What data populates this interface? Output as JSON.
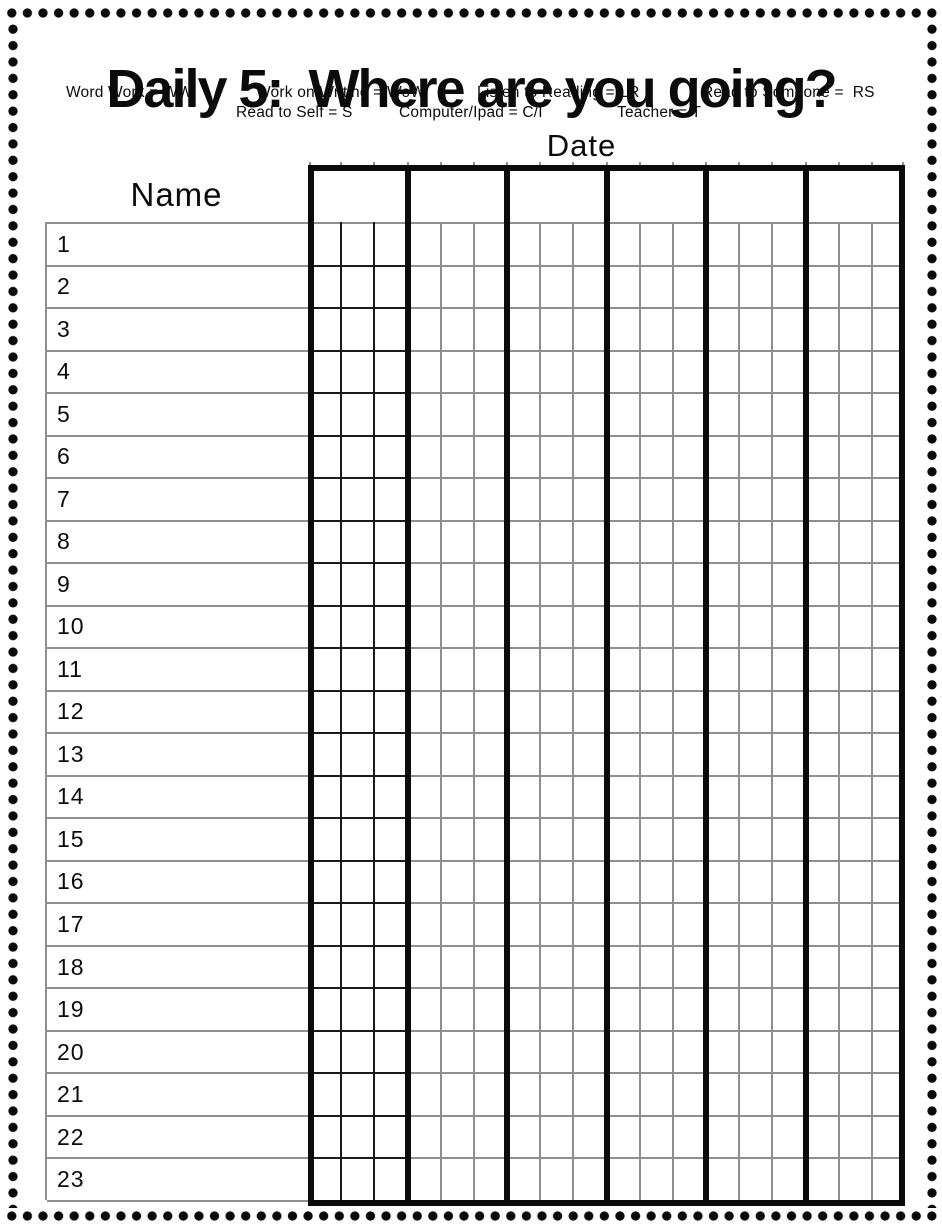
{
  "title": "Daily 5:  Where are you going?",
  "legend": {
    "row1": [
      "Word Work = WW",
      "Work on Writing = WoW",
      "Listen to Reading = LR",
      "Read to Someone =  RS"
    ],
    "row2": [
      "Read to Self = S",
      "Computer/Ipad = C/I",
      "Teacher = T"
    ]
  },
  "grid": {
    "date_label": "Date",
    "name_label": "Name",
    "date_column_count": 6,
    "subcolumns_per_date_column": 3,
    "rows": [
      "1",
      "2",
      "3",
      "4",
      "5",
      "6",
      "7",
      "8",
      "9",
      "10",
      "11",
      "12",
      "13",
      "14",
      "15",
      "16",
      "17",
      "18",
      "19",
      "20",
      "21",
      "22",
      "23"
    ]
  },
  "colors": {
    "ink": "#0b0b0b",
    "grid_gray": "#8f8f8f",
    "paper": "#ffffff"
  }
}
